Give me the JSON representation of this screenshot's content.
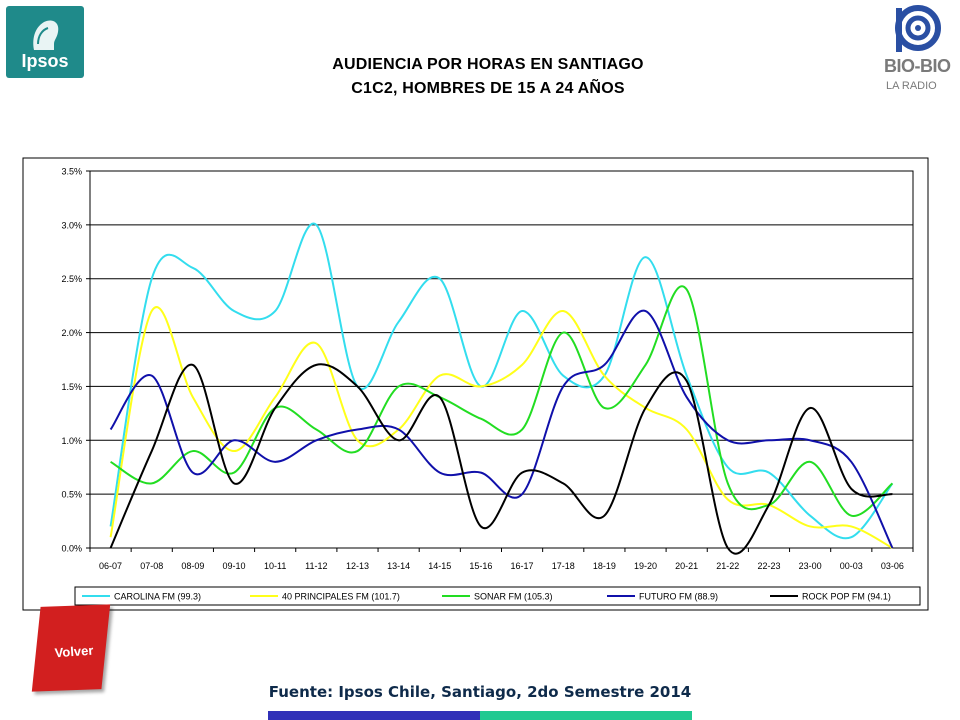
{
  "logos": {
    "ipsos_text": "Ipsos",
    "biobio_text": "BIO-BIO",
    "biobio_sub": "LA RADIO"
  },
  "title_line1": "AUDIENCIA POR HORAS EN SANTIAGO",
  "title_line2": "C1C2, HOMBRES DE 15 A 24 AÑOS",
  "source_text": "Fuente: Ipsos Chile, Santiago, 2do Semestre 2014",
  "volver_label": "Volver",
  "colors": {
    "ipsos": "#1f8a8a",
    "volver": "#d21f1f",
    "footer_blue": "#3131b8",
    "footer_teal": "#21c991"
  },
  "chart_data": {
    "type": "line",
    "smooth": true,
    "categories": [
      "06-07",
      "07-08",
      "08-09",
      "09-10",
      "10-11",
      "11-12",
      "12-13",
      "13-14",
      "14-15",
      "15-16",
      "16-17",
      "17-18",
      "18-19",
      "19-20",
      "20-21",
      "21-22",
      "22-23",
      "23-00",
      "00-03",
      "03-06"
    ],
    "ylim": [
      0,
      3.5
    ],
    "yticks": [
      0,
      0.5,
      1.0,
      1.5,
      2.0,
      2.5,
      3.0,
      3.5
    ],
    "ytick_labels": [
      "0.0%",
      "0.5%",
      "1.0%",
      "1.5%",
      "2.0%",
      "2.5%",
      "3.0%",
      "3.5%"
    ],
    "grid": true,
    "legend_position": "bottom",
    "series": [
      {
        "name": "CAROLINA FM (99.3)",
        "color": "#33ddee",
        "values": [
          0.2,
          2.5,
          2.6,
          2.2,
          2.2,
          3.0,
          1.5,
          2.1,
          2.5,
          1.5,
          2.2,
          1.6,
          1.6,
          2.7,
          1.6,
          0.75,
          0.7,
          0.3,
          0.1,
          0.6
        ]
      },
      {
        "name": "40 PRINCIPALES FM (101.7)",
        "color": "#ffff1a",
        "values": [
          0.1,
          2.2,
          1.4,
          0.9,
          1.4,
          1.9,
          1.0,
          1.1,
          1.6,
          1.5,
          1.7,
          2.2,
          1.6,
          1.3,
          1.1,
          0.45,
          0.4,
          0.2,
          0.2,
          0.0
        ]
      },
      {
        "name": "SONAR FM (105.3)",
        "color": "#22dd22",
        "values": [
          0.8,
          0.6,
          0.9,
          0.7,
          1.3,
          1.1,
          0.9,
          1.5,
          1.4,
          1.2,
          1.1,
          2.0,
          1.3,
          1.7,
          2.4,
          0.6,
          0.4,
          0.8,
          0.3,
          0.6
        ]
      },
      {
        "name": "FUTURO FM (88.9)",
        "color": "#1010aa",
        "values": [
          1.1,
          1.6,
          0.7,
          1.0,
          0.8,
          1.0,
          1.1,
          1.1,
          0.7,
          0.7,
          0.5,
          1.5,
          1.7,
          2.2,
          1.4,
          1.0,
          1.0,
          1.0,
          0.8,
          0.0
        ]
      },
      {
        "name": "ROCK POP FM (94.1)",
        "color": "#000000",
        "values": [
          0.0,
          0.9,
          1.7,
          0.6,
          1.3,
          1.7,
          1.5,
          1.0,
          1.4,
          0.2,
          0.7,
          0.6,
          0.3,
          1.3,
          1.55,
          0.0,
          0.4,
          1.3,
          0.55,
          0.5
        ]
      }
    ]
  }
}
